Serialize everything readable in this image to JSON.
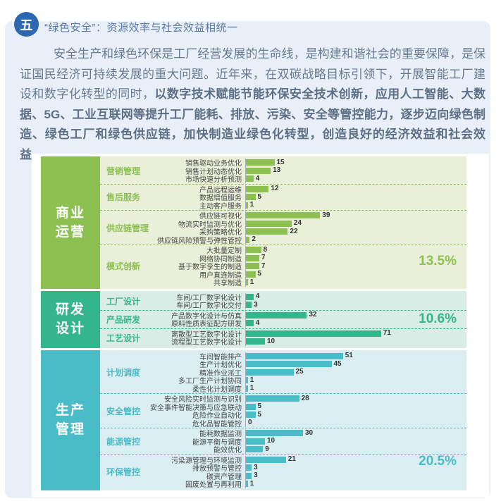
{
  "page": {
    "badge": "五",
    "title": "“绿色安全”：资源效率与社会效益相统一",
    "paragraph_normal": "安全生产和绿色环保是工厂经营发展的生命线，是构建和谐社会的重要保障，是保证国民经济可持续发展的重大问题。近年来，在双碳战略目标引领下，开展智能工厂建设和数字化转型的同时，",
    "paragraph_bold": "以数字技术赋能节能环保安全技术创新，应用人工智能、大数据、5G、工业互联网等提升工厂能耗、排放、污染、安全等管控能力，逐步迈向绿色制造、绿色工厂和绿色供应链，加快制造业绿色化转型，创造良好的经济效益和社会效益。"
  },
  "colors": {
    "page_card_bg": "#e9eff8",
    "badge_blue": "#2d67b0",
    "title_blue": "#5b79a8",
    "body_text": "#68798f",
    "business_green": "#8cc152",
    "business_bg": "#e9efd8",
    "rd_teal": "#35b58b",
    "rd_bg": "#d9ece5",
    "production_cyan": "#49bcc8",
    "production_bg": "#daeef2"
  },
  "chart_data": {
    "type": "bar",
    "orientation": "horizontal",
    "value_axis_hidden": true,
    "sections": [
      {
        "name": "商业运营",
        "name_lines": [
          "商业",
          "运营"
        ],
        "percent": "13.5%",
        "accent": "#8cc152",
        "bg": "#e9efd8",
        "groups": [
          {
            "label": "营销管理",
            "items": [
              {
                "label": "销售驱动业务优化",
                "value": 15
              },
              {
                "label": "销售计划动态优化",
                "value": 13
              },
              {
                "label": "市场快速分析预测",
                "value": 4
              }
            ]
          },
          {
            "label": "售后服务",
            "items": [
              {
                "label": "产品远程运维",
                "value": 12
              },
              {
                "label": "数据增值服务",
                "value": 5
              },
              {
                "label": "主动客户服务",
                "value": 1
              }
            ]
          },
          {
            "label": "供应链管理",
            "items": [
              {
                "label": "供应链可视化",
                "value": 39
              },
              {
                "label": "物流实时监测与优化",
                "value": 24
              },
              {
                "label": "采购策略优化",
                "value": 22
              },
              {
                "label": "供应链风险预警与弹性管控",
                "value": 2
              }
            ]
          },
          {
            "label": "模式创新",
            "items": [
              {
                "label": "大批量定制",
                "value": 8
              },
              {
                "label": "网络协同制造",
                "value": 7
              },
              {
                "label": "基于数字孪生的制造",
                "value": 7
              },
              {
                "label": "用户直连制造",
                "value": 5
              },
              {
                "label": "共享制造",
                "value": 1
              }
            ]
          }
        ]
      },
      {
        "name": "研发设计",
        "name_lines": [
          "研发",
          "设计"
        ],
        "percent": "10.6%",
        "accent": "#35b58b",
        "bg": "#d9ece5",
        "groups": [
          {
            "label": "工厂设计",
            "items": [
              {
                "label": "车间/工厂数字化设计",
                "value": 4
              },
              {
                "label": "车间/工厂数字化交付",
                "value": 3
              }
            ]
          },
          {
            "label": "产品研发",
            "items": [
              {
                "label": "产品数字化设计与仿真",
                "value": 32
              },
              {
                "label": "原料性质表征配方研发",
                "value": 4
              }
            ]
          },
          {
            "label": "工艺设计",
            "items": [
              {
                "label": "离散型工艺数字化设计",
                "value": 71
              },
              {
                "label": "流程型工艺数字化设计",
                "value": 10
              }
            ]
          }
        ]
      },
      {
        "name": "生产管理",
        "name_lines": [
          "生产",
          "管理"
        ],
        "percent": "20.5%",
        "accent": "#49bcc8",
        "bg": "#daeef2",
        "groups": [
          {
            "label": "计划调度",
            "items": [
              {
                "label": "车间智能排产",
                "value": 51
              },
              {
                "label": "生产计划优化",
                "value": 45
              },
              {
                "label": "精准作业派工",
                "value": 25
              },
              {
                "label": "多工厂生产计划协同",
                "value": 1
              },
              {
                "label": "柔性化计划调度",
                "value": 1
              }
            ]
          },
          {
            "label": "安全管控",
            "items": [
              {
                "label": "安全风险实时监测与识别",
                "value": 28
              },
              {
                "label": "安全事件智能决策与应急联动",
                "value": 5
              },
              {
                "label": "危险作业自动化",
                "value": 5
              },
              {
                "label": "危化品智能管控",
                "value": 0
              }
            ]
          },
          {
            "label": "能源管控",
            "items": [
              {
                "label": "能耗数据监测",
                "value": 30
              },
              {
                "label": "能源平衡与调度",
                "value": 10
              },
              {
                "label": "能效优化",
                "value": 9
              }
            ]
          },
          {
            "label": "环保管控",
            "items": [
              {
                "label": "污染源管理与环境监测",
                "value": 21
              },
              {
                "label": "排放预警与管控",
                "value": 3
              },
              {
                "label": "碳资产管理",
                "value": 3
              },
              {
                "label": "固废处置与再利用",
                "value": 1
              }
            ]
          }
        ]
      }
    ]
  }
}
